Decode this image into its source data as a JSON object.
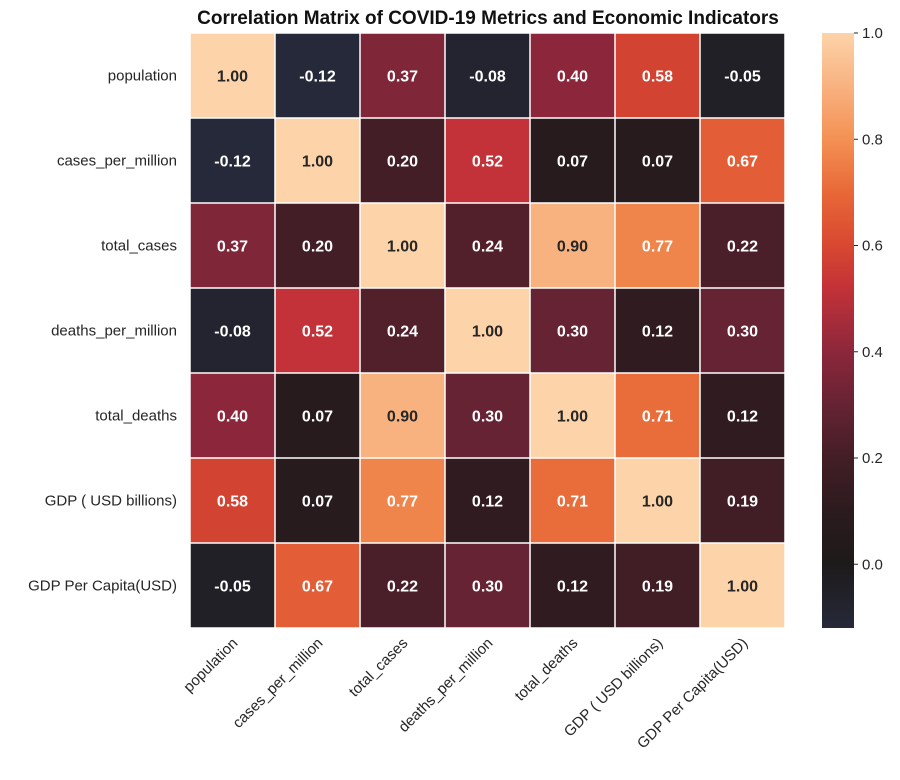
{
  "chart_data": {
    "type": "heatmap",
    "title": "Correlation Matrix of COVID-19 Metrics and Economic Indicators",
    "labels": [
      "population",
      "cases_per_million",
      "total_cases",
      "deaths_per_million",
      "total_deaths",
      "GDP ( USD billions)",
      "GDP Per Capita(USD)"
    ],
    "values": [
      [
        1.0,
        -0.12,
        0.37,
        -0.08,
        0.4,
        0.58,
        -0.05
      ],
      [
        -0.12,
        1.0,
        0.2,
        0.52,
        0.07,
        0.07,
        0.67
      ],
      [
        0.37,
        0.2,
        1.0,
        0.24,
        0.9,
        0.77,
        0.22
      ],
      [
        -0.08,
        0.52,
        0.24,
        1.0,
        0.3,
        0.12,
        0.3
      ],
      [
        0.4,
        0.07,
        0.9,
        0.3,
        1.0,
        0.71,
        0.12
      ],
      [
        0.58,
        0.07,
        0.77,
        0.12,
        0.71,
        1.0,
        0.19
      ],
      [
        -0.05,
        0.67,
        0.22,
        0.3,
        0.12,
        0.19,
        1.0
      ]
    ],
    "cell_labels": [
      [
        "1.00",
        "-0.12",
        "0.37",
        "-0.08",
        "0.40",
        "0.58",
        "-0.05"
      ],
      [
        "-0.12",
        "1.00",
        "0.20",
        "0.52",
        "0.07",
        "0.07",
        "0.67"
      ],
      [
        "0.37",
        "0.20",
        "1.00",
        "0.24",
        "0.90",
        "0.77",
        "0.22"
      ],
      [
        "-0.08",
        "0.52",
        "0.24",
        "1.00",
        "0.30",
        "0.12",
        "0.30"
      ],
      [
        "0.40",
        "0.07",
        "0.90",
        "0.30",
        "1.00",
        "0.71",
        "0.12"
      ],
      [
        "0.58",
        "0.07",
        "0.77",
        "0.12",
        "0.71",
        "1.00",
        "0.19"
      ],
      [
        "-0.05",
        "0.67",
        "0.22",
        "0.30",
        "0.12",
        "0.19",
        "1.00"
      ]
    ],
    "colorbar": {
      "vmin": -0.12,
      "vmax": 1.0,
      "center": 0,
      "ticks": [
        0.0,
        0.2,
        0.4,
        0.6,
        0.8,
        1.0
      ],
      "tick_labels": [
        "0.0",
        "0.2",
        "0.4",
        "0.6",
        "0.8",
        "1.0"
      ]
    },
    "colormap": "diverging dark-centered: dark navy (negative) → near-black (0) → red/orange → peach (1.0)",
    "colors": {
      "low": "#262a3a",
      "zero": "#1c1a1a",
      "high": "#fdd3a9",
      "grid_line": "#ffffff"
    },
    "annotations_visible": true
  }
}
